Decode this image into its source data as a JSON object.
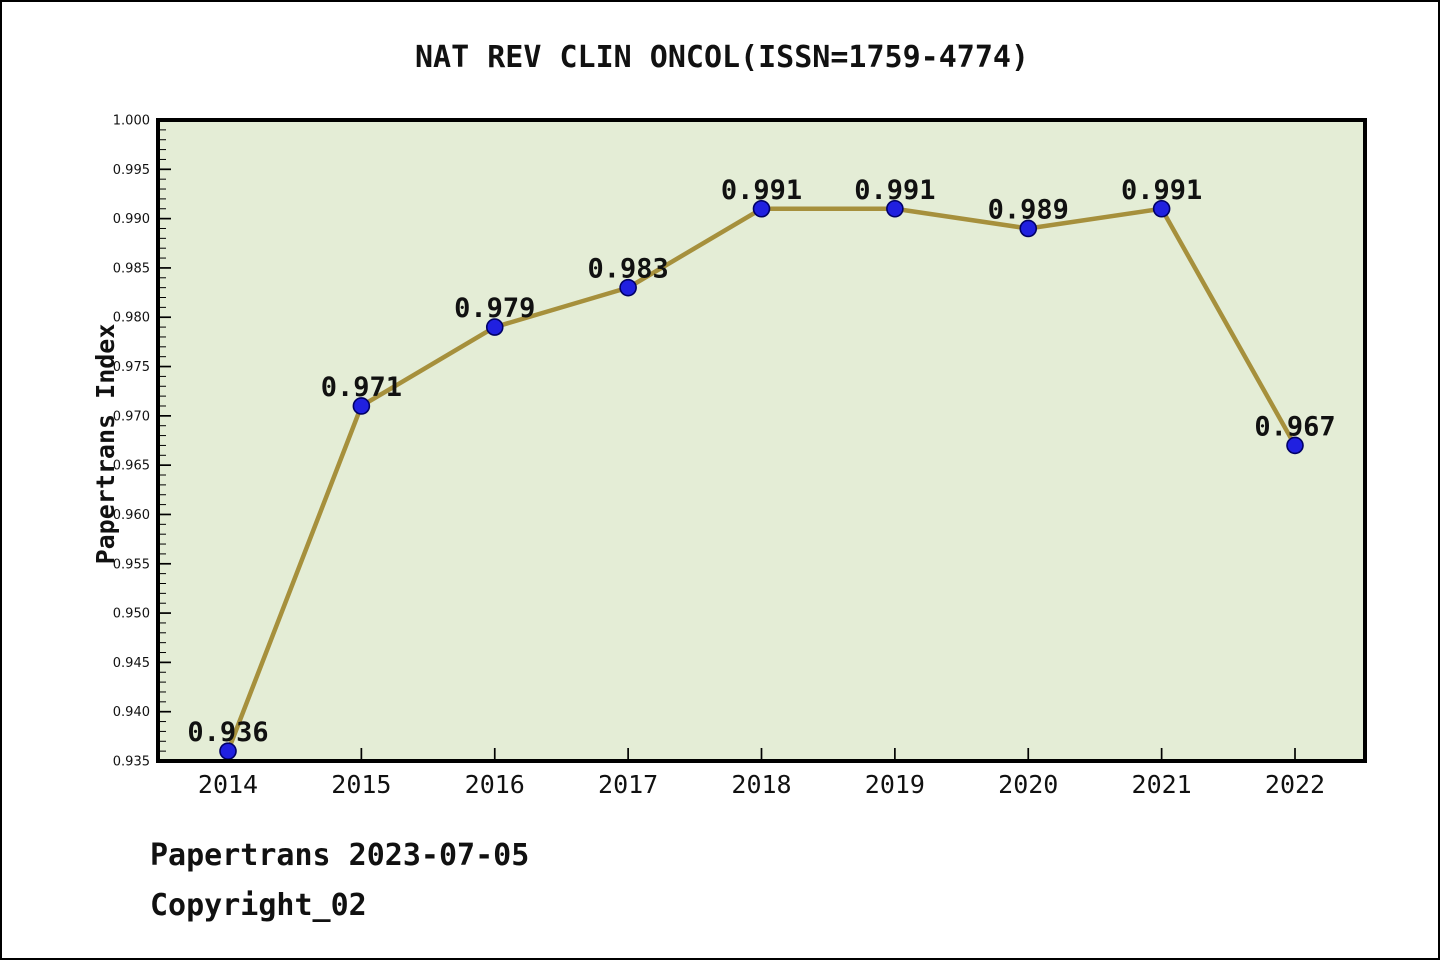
{
  "title": "NAT REV CLIN ONCOL(ISSN=1759-4774)",
  "footer": {
    "line1": "Papertrans 2023-07-05",
    "line2": "Copyright_02"
  },
  "chart_data": {
    "type": "line",
    "title": "NAT REV CLIN ONCOL(ISSN=1759-4774)",
    "xlabel": "",
    "ylabel": "Papertrans Index",
    "categories": [
      2014,
      2015,
      2016,
      2017,
      2018,
      2019,
      2020,
      2021,
      2022
    ],
    "values": [
      0.936,
      0.971,
      0.979,
      0.983,
      0.991,
      0.991,
      0.989,
      0.991,
      0.967
    ],
    "point_labels": [
      "0.936",
      "0.971",
      "0.979",
      "0.983",
      "0.991",
      "0.991",
      "0.989",
      "0.991",
      "0.967"
    ],
    "xtick_labels": [
      "2014",
      "2015",
      "2016",
      "2017",
      "2018",
      "2019",
      "2020",
      "2021",
      "2022"
    ],
    "ytick_labels": [
      "0.935",
      "0.940",
      "0.945",
      "0.950",
      "0.955",
      "0.960",
      "0.965",
      "0.970",
      "0.975",
      "0.980",
      "0.985",
      "0.990",
      "0.995",
      "1.000"
    ],
    "ylim": [
      0.935,
      1.0
    ],
    "ytick_step": 0.005,
    "ytick_minor_step": 0.001,
    "grid": false,
    "legend": null,
    "colors": {
      "plot_bg": "#E4EDD6",
      "frame": "#000000",
      "line": "#A6903C",
      "marker_fill": "#2020E0",
      "marker_edge": "#000066",
      "text": "#111111"
    }
  }
}
